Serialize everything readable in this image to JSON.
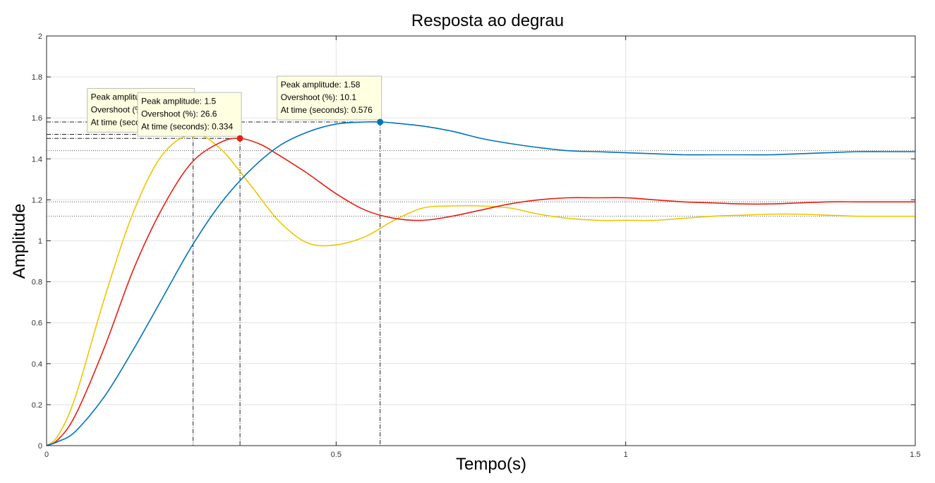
{
  "chart_data": {
    "type": "line",
    "title": "Resposta ao degrau",
    "xlabel": "Tempo(s)",
    "ylabel": "Amplitude",
    "xlim": [
      0,
      1.5
    ],
    "ylim": [
      0,
      2
    ],
    "grid": true,
    "x_ticks": [
      {
        "value": 0,
        "label": "0"
      },
      {
        "value": 0.5,
        "label": "0.5"
      },
      {
        "value": 1,
        "label": "1"
      },
      {
        "value": 1.5,
        "label": "1.5"
      }
    ],
    "y_ticks": [
      {
        "value": 0,
        "label": "0"
      },
      {
        "value": 0.2,
        "label": "0.2"
      },
      {
        "value": 0.4,
        "label": "0.4"
      },
      {
        "value": 0.6,
        "label": "0.6"
      },
      {
        "value": 0.8,
        "label": "0.8"
      },
      {
        "value": 1,
        "label": "1"
      },
      {
        "value": 1.2,
        "label": "1.2"
      },
      {
        "value": 1.4,
        "label": "1.4"
      },
      {
        "value": 1.6,
        "label": "1.6"
      },
      {
        "value": 1.8,
        "label": "1.8"
      },
      {
        "value": 2,
        "label": "2"
      }
    ],
    "series": [
      {
        "color": "#EDC600",
        "steady_state": 1.12,
        "x": [
          0,
          0.02,
          0.05,
          0.1,
          0.15,
          0.2,
          0.253,
          0.3,
          0.35,
          0.4,
          0.45,
          0.5,
          0.55,
          0.6,
          0.65,
          0.7,
          0.75,
          0.8,
          0.85,
          0.9,
          0.95,
          1.0,
          1.05,
          1.1,
          1.15,
          1.2,
          1.25,
          1.3,
          1.35,
          1.4,
          1.45,
          1.5
        ],
        "y": [
          0,
          0.05,
          0.24,
          0.72,
          1.14,
          1.42,
          1.52,
          1.45,
          1.28,
          1.1,
          0.99,
          0.98,
          1.02,
          1.1,
          1.16,
          1.17,
          1.17,
          1.16,
          1.13,
          1.11,
          1.1,
          1.1,
          1.1,
          1.11,
          1.12,
          1.125,
          1.13,
          1.13,
          1.125,
          1.12,
          1.12,
          1.12
        ]
      },
      {
        "color": "#E51E10",
        "steady_state": 1.19,
        "x": [
          0,
          0.02,
          0.05,
          0.1,
          0.15,
          0.2,
          0.25,
          0.3,
          0.334,
          0.37,
          0.4,
          0.45,
          0.5,
          0.55,
          0.6,
          0.65,
          0.7,
          0.75,
          0.8,
          0.85,
          0.9,
          0.95,
          1.0,
          1.05,
          1.1,
          1.15,
          1.2,
          1.25,
          1.3,
          1.35,
          1.4,
          1.45,
          1.5
        ],
        "y": [
          0,
          0.03,
          0.15,
          0.48,
          0.86,
          1.16,
          1.38,
          1.48,
          1.5,
          1.47,
          1.42,
          1.33,
          1.23,
          1.15,
          1.11,
          1.1,
          1.12,
          1.15,
          1.18,
          1.2,
          1.21,
          1.21,
          1.21,
          1.2,
          1.19,
          1.185,
          1.18,
          1.18,
          1.185,
          1.19,
          1.19,
          1.19,
          1.19
        ]
      },
      {
        "color": "#0072BD",
        "steady_state": 1.44,
        "x": [
          0,
          0.02,
          0.05,
          0.1,
          0.15,
          0.2,
          0.25,
          0.3,
          0.35,
          0.4,
          0.45,
          0.5,
          0.55,
          0.576,
          0.6,
          0.65,
          0.7,
          0.75,
          0.8,
          0.85,
          0.9,
          0.95,
          1.0,
          1.05,
          1.1,
          1.15,
          1.2,
          1.25,
          1.3,
          1.35,
          1.4,
          1.45,
          1.5
        ],
        "y": [
          0,
          0.02,
          0.07,
          0.24,
          0.47,
          0.72,
          0.97,
          1.18,
          1.34,
          1.46,
          1.53,
          1.57,
          1.58,
          1.58,
          1.575,
          1.56,
          1.535,
          1.5,
          1.475,
          1.455,
          1.44,
          1.435,
          1.43,
          1.425,
          1.42,
          1.42,
          1.42,
          1.42,
          1.425,
          1.43,
          1.435,
          1.435,
          1.435
        ]
      }
    ],
    "annotations": [
      {
        "series_index": 0,
        "x": 0.253,
        "y": 1.52,
        "lines": [
          "Peak amplitude: 1.52",
          "Overshoot (%): 35.8",
          "At time (seconds): 0.253"
        ]
      },
      {
        "series_index": 1,
        "x": 0.334,
        "y": 1.5,
        "lines": [
          "Peak amplitude: 1.5",
          "Overshoot (%): 26.6",
          "At time (seconds): 0.334"
        ]
      },
      {
        "series_index": 2,
        "x": 0.576,
        "y": 1.58,
        "lines": [
          "Peak amplitude: 1.58",
          "Overshoot (%): 10.1",
          "At time (seconds): 0.576"
        ]
      }
    ]
  }
}
